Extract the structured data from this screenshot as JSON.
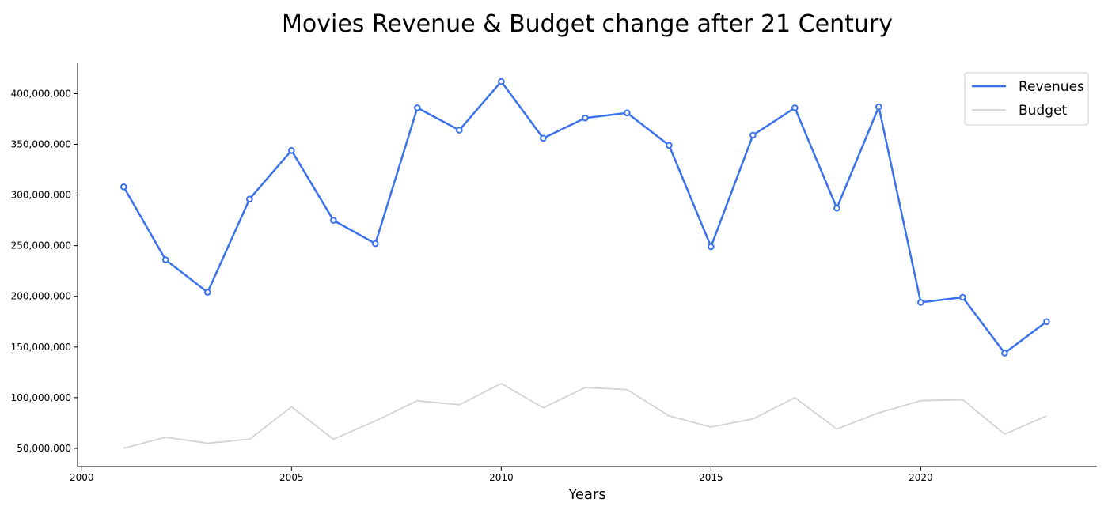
{
  "chart_data": {
    "type": "line",
    "title": "Movies Revenue & Budget change after 21 Century",
    "xlabel": "Years",
    "ylabel": "",
    "x": [
      2001,
      2002,
      2003,
      2004,
      2005,
      2006,
      2007,
      2008,
      2009,
      2010,
      2011,
      2012,
      2013,
      2014,
      2015,
      2016,
      2017,
      2018,
      2019,
      2020,
      2021,
      2022,
      2023
    ],
    "series": [
      {
        "name": "Revenues",
        "color": "#3a72ec",
        "markers": true,
        "values": [
          308000000,
          236000000,
          204000000,
          296000000,
          344000000,
          275000000,
          252000000,
          386000000,
          364000000,
          412000000,
          356000000,
          376000000,
          381000000,
          349000000,
          249000000,
          359000000,
          386000000,
          287000000,
          387000000,
          194000000,
          199000000,
          144000000,
          175000000
        ]
      },
      {
        "name": "Budget",
        "color": "#d3d3d3",
        "markers": false,
        "values": [
          50000000,
          61000000,
          55000000,
          59000000,
          91000000,
          59000000,
          77000000,
          97000000,
          93000000,
          114000000,
          90000000,
          110000000,
          108000000,
          82000000,
          71000000,
          79000000,
          100000000,
          69000000,
          85000000,
          97000000,
          98000000,
          64000000,
          82000000
        ]
      }
    ],
    "xlim": [
      1999.9,
      2024.2
    ],
    "ylim": [
      32000000,
      430000000
    ],
    "xticks": [
      2000,
      2005,
      2010,
      2015,
      2020
    ],
    "xtick_labels": [
      "2000",
      "2005",
      "2010",
      "2015",
      "2020"
    ],
    "yticks": [
      50000000,
      100000000,
      150000000,
      200000000,
      250000000,
      300000000,
      350000000,
      400000000
    ],
    "ytick_labels": [
      "50,000,000",
      "100,000,000",
      "150,000,000",
      "200,000,000",
      "250,000,000",
      "300,000,000",
      "350,000,000",
      "400,000,000"
    ],
    "grid": false,
    "legend_position": "top-right"
  }
}
